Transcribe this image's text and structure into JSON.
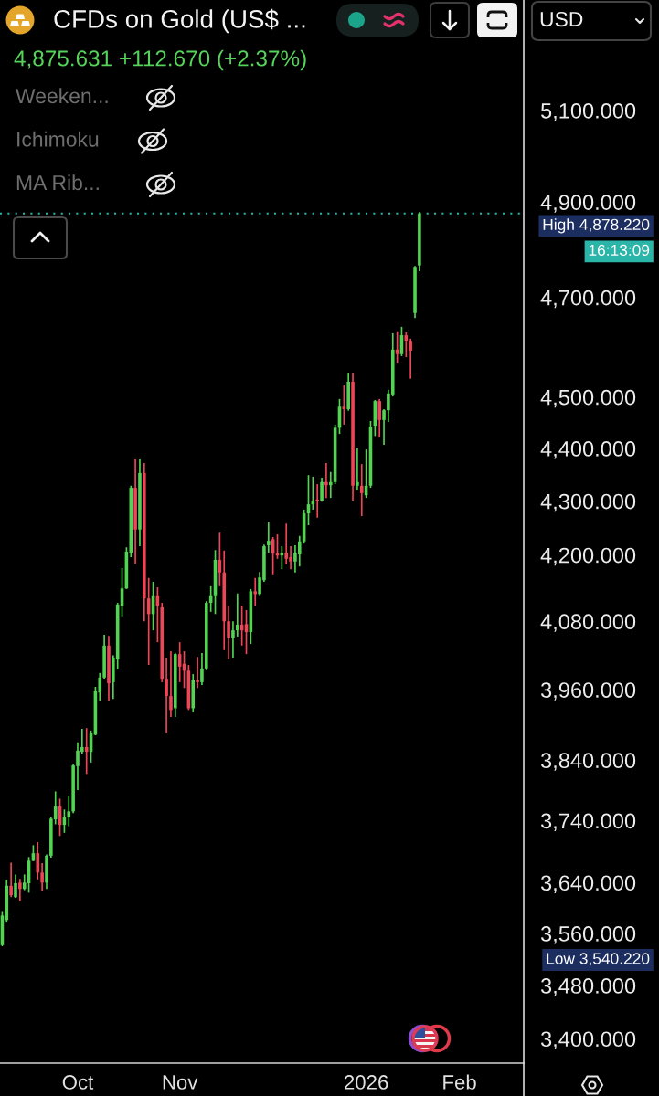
{
  "chart_data": {
    "type": "candlestick",
    "title": "CFDs on Gold (US$ ...",
    "subtitle": "4,875.631 +112.670 (+2.37%)",
    "categories": [
      null,
      null,
      null,
      null,
      null,
      null,
      null,
      null,
      null,
      null,
      null,
      null,
      null,
      null,
      null,
      null,
      null,
      "Oct",
      null,
      null,
      null,
      null,
      null,
      null,
      null,
      null,
      null,
      null,
      null,
      null,
      null,
      null,
      null,
      null,
      null,
      null,
      null,
      null,
      null,
      null,
      "Nov",
      null,
      null,
      null,
      null,
      null,
      null,
      null,
      null,
      null,
      null,
      null,
      null,
      null,
      null,
      null,
      null,
      null,
      null,
      null,
      null,
      null,
      null,
      null,
      null,
      null,
      null,
      null,
      null,
      null,
      null,
      null,
      null,
      null,
      null,
      null,
      null,
      null,
      null,
      null,
      null,
      null,
      "2026",
      null,
      null,
      null,
      null,
      null,
      null,
      null,
      null,
      null,
      null,
      null,
      null,
      null,
      null,
      null,
      null,
      null,
      null,
      null,
      null,
      "Feb",
      null,
      null,
      null,
      null,
      null,
      null,
      null,
      null,
      null,
      null,
      null,
      null,
      null,
      null
    ],
    "ohlc": [
      [
        3542,
        3595,
        3540.22,
        3588
      ],
      [
        3581,
        3645,
        3577,
        3635
      ],
      [
        3635,
        3672,
        3617,
        3620
      ],
      [
        3617,
        3653,
        3616,
        3639
      ],
      [
        3640,
        3646,
        3610,
        3630
      ],
      [
        3630,
        3653,
        3628,
        3640
      ],
      [
        3639,
        3681,
        3624,
        3675
      ],
      [
        3675,
        3700,
        3674,
        3687
      ],
      [
        3687,
        3705,
        3645,
        3656
      ],
      [
        3656,
        3671,
        3626,
        3640
      ],
      [
        3640,
        3685,
        3630,
        3683
      ],
      [
        3683,
        3746,
        3680,
        3743
      ],
      [
        3742,
        3788,
        3734,
        3763
      ],
      [
        3763,
        3776,
        3715,
        3733
      ],
      [
        3733,
        3758,
        3720,
        3745
      ],
      [
        3745,
        3781,
        3731,
        3755
      ],
      [
        3755,
        3834,
        3752,
        3831
      ],
      [
        3830,
        3870,
        3790,
        3856
      ],
      [
        3854,
        3893,
        3851,
        3862
      ],
      [
        3862,
        3894,
        3817,
        3854
      ],
      [
        3854,
        3890,
        3836,
        3885
      ],
      [
        3883,
        3965,
        3882,
        3957
      ],
      [
        3955,
        3989,
        3940,
        3981
      ],
      [
        3981,
        4056,
        3979,
        4037
      ],
      [
        4037,
        4054,
        3941,
        3971
      ],
      [
        3973,
        4020,
        3944,
        4016
      ],
      [
        4013,
        4113,
        3995,
        4110
      ],
      [
        4108,
        4176,
        4089,
        4139
      ],
      [
        4139,
        4214,
        4138,
        4206
      ],
      [
        4204,
        4329,
        4196,
        4325
      ],
      [
        4325,
        4379,
        4184,
        4247
      ],
      [
        4247,
        4379,
        4216,
        4353
      ],
      [
        4353,
        4372,
        4080,
        4121
      ],
      [
        4121,
        4158,
        4003,
        4093
      ],
      [
        4093,
        4151,
        4064,
        4125
      ],
      [
        4125,
        4141,
        4043,
        4108
      ],
      [
        4105,
        4113,
        3973,
        3979
      ],
      [
        3979,
        4016,
        3885,
        3949
      ],
      [
        3949,
        4027,
        3913,
        3925
      ],
      [
        3928,
        4024,
        3913,
        4022
      ],
      [
        4022,
        4043,
        3973,
        4000
      ],
      [
        4005,
        4027,
        3963,
        3993
      ],
      [
        3993,
        4003,
        3925,
        3928
      ],
      [
        3928,
        3987,
        3921,
        3976
      ],
      [
        3977,
        4017,
        3963,
        3973
      ],
      [
        3973,
        4024,
        3968,
        3997
      ],
      [
        3997,
        4116,
        3994,
        4113
      ],
      [
        4113,
        4143,
        4097,
        4125
      ],
      [
        4125,
        4209,
        4093,
        4191
      ],
      [
        4191,
        4241,
        4143,
        4168
      ],
      [
        4168,
        4208,
        4029,
        4080
      ],
      [
        4080,
        4108,
        4013,
        4051
      ],
      [
        4051,
        4080,
        4016,
        4064
      ],
      [
        4064,
        4130,
        4053,
        4074
      ],
      [
        4074,
        4108,
        4037,
        4064
      ],
      [
        4075,
        4100,
        4022,
        4061
      ],
      [
        4061,
        4138,
        4040,
        4134
      ],
      [
        4134,
        4158,
        4108,
        4129
      ],
      [
        4129,
        4169,
        4125,
        4159
      ],
      [
        4154,
        4219,
        4151,
        4216
      ],
      [
        4218,
        4260,
        4204,
        4226
      ],
      [
        4229,
        4233,
        4163,
        4203
      ],
      [
        4203,
        4238,
        4193,
        4199
      ],
      [
        4199,
        4216,
        4174,
        4204
      ],
      [
        4204,
        4258,
        4183,
        4193
      ],
      [
        4196,
        4216,
        4174,
        4188
      ],
      [
        4188,
        4218,
        4168,
        4204
      ],
      [
        4201,
        4235,
        4179,
        4225
      ],
      [
        4225,
        4284,
        4221,
        4277
      ],
      [
        4277,
        4349,
        4255,
        4294
      ],
      [
        4294,
        4346,
        4284,
        4301
      ],
      [
        4303,
        4332,
        4269,
        4301
      ],
      [
        4301,
        4344,
        4299,
        4336
      ],
      [
        4336,
        4372,
        4306,
        4330
      ],
      [
        4330,
        4355,
        4306,
        4336
      ],
      [
        4336,
        4446,
        4332,
        4440
      ],
      [
        4440,
        4496,
        4428,
        4481
      ],
      [
        4481,
        4523,
        4446,
        4476
      ],
      [
        4476,
        4548,
        4473,
        4530
      ],
      [
        4530,
        4548,
        4301,
        4329
      ],
      [
        4329,
        4400,
        4320,
        4336
      ],
      [
        4329,
        4370,
        4272,
        4315
      ],
      [
        4311,
        4398,
        4306,
        4329
      ],
      [
        4329,
        4453,
        4325,
        4442
      ],
      [
        4444,
        4494,
        4424,
        4492
      ],
      [
        4492,
        4496,
        4421,
        4455
      ],
      [
        4455,
        4476,
        4407,
        4474
      ],
      [
        4474,
        4514,
        4451,
        4507
      ],
      [
        4505,
        4627,
        4501,
        4594
      ],
      [
        4594,
        4631,
        4568,
        4585
      ],
      [
        4585,
        4640,
        4581,
        4623
      ],
      [
        4623,
        4629,
        4579,
        4612
      ],
      [
        4612,
        4616,
        4536,
        4592
      ],
      [
        4668,
        4765,
        4658,
        4763
      ],
      [
        4766,
        4878.22,
        4754,
        4875.631
      ],
      null,
      null,
      null,
      null,
      null,
      null,
      null,
      null,
      null,
      null,
      null,
      null,
      null,
      null,
      null,
      null,
      null,
      null,
      null,
      null,
      null,
      null,
      null
    ],
    "colors": [
      "#52d352",
      "#52d352",
      "#ee4557",
      "#52d352",
      "#ee4557",
      "#52d352",
      "#52d352",
      "#52d352",
      "#ee4557",
      "#ee4557",
      "#52d352",
      "#52d352",
      "#52d352",
      "#ee4557",
      "#52d352",
      "#52d352",
      "#52d352",
      "#52d352",
      "#52d352",
      "#ee4557",
      "#52d352",
      "#52d352",
      "#52d352",
      "#52d352",
      "#ee4557",
      "#52d352",
      "#52d352",
      "#52d352",
      "#52d352",
      "#52d352",
      "#ee4557",
      "#52d352",
      "#ee4557",
      "#ee4557",
      "#52d352",
      "#ee4557",
      "#ee4557",
      "#ee4557",
      "#ee4557",
      "#52d352",
      "#ee4557",
      "#ee4557",
      "#ee4557",
      "#52d352",
      "#ee4557",
      "#52d352",
      "#52d352",
      "#52d352",
      "#52d352",
      "#ee4557",
      "#ee4557",
      "#ee4557",
      "#52d352",
      "#52d352",
      "#ee4557",
      "#ee4557",
      "#52d352",
      "#ee4557",
      "#52d352",
      "#52d352",
      "#52d352",
      "#ee4557",
      "#ee4557",
      "#52d352",
      "#ee4557",
      "#ee4557",
      "#52d352",
      "#52d352",
      "#52d352",
      "#52d352",
      "#52d352",
      "#ee4557",
      "#52d352",
      "#ee4557",
      "#52d352",
      "#52d352",
      "#52d352",
      "#ee4557",
      "#52d352",
      "#ee4557",
      "#52d352",
      "#ee4557",
      "#52d352",
      "#52d352",
      "#52d352",
      "#ee4557",
      "#52d352",
      "#52d352",
      "#52d352",
      "#ee4557",
      "#52d352",
      "#ee4557",
      "#ee4557",
      "#52d352",
      "#52d352",
      null,
      null,
      null,
      null,
      null,
      null,
      null,
      null,
      null,
      null,
      null,
      null,
      null,
      null,
      null,
      null,
      null,
      null,
      null,
      null,
      null,
      null,
      null
    ],
    "log": true,
    "ylim": [
      3364,
      5352
    ],
    "yticks": [
      {
        "value": 5100,
        "label": "5,100.000"
      },
      {
        "value": 4900,
        "label": "4,900.000"
      },
      {
        "value": 4700,
        "label": "4,700.000"
      },
      {
        "value": 4500,
        "label": "4,500.000"
      },
      {
        "value": 4400,
        "label": "4,400.000"
      },
      {
        "value": 4300,
        "label": "4,300.000"
      },
      {
        "value": 4200,
        "label": "4,200.000"
      },
      {
        "value": 4080,
        "label": "4,080.000"
      },
      {
        "value": 3960,
        "label": "3,960.000"
      },
      {
        "value": 3840,
        "label": "3,840.000"
      },
      {
        "value": 3740,
        "label": "3,740.000"
      },
      {
        "value": 3640,
        "label": "3,640.000"
      },
      {
        "value": 3560,
        "label": "3,560.000"
      },
      {
        "value": 3480,
        "label": "3,480.000"
      },
      {
        "value": 3400,
        "label": "3,400.000"
      }
    ],
    "ref_lines": [
      {
        "axis": "y",
        "value": 4875.631,
        "color": "#2bb5a8",
        "line_style": "dotted"
      }
    ],
    "annotations": [
      "USD",
      "Weeken...",
      "Ichimoku",
      "MA Rib...",
      "High 4,878.220",
      "16:13:09",
      "Low 3,540.220"
    ]
  }
}
